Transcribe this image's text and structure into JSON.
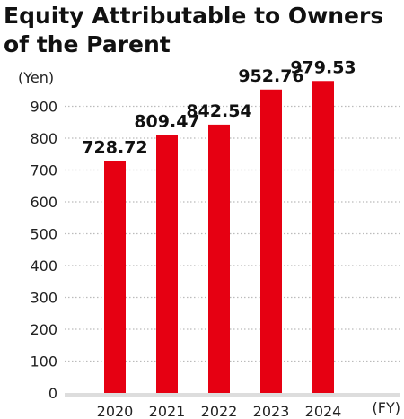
{
  "title": "Equity Attributable to Owners of the Parent",
  "chart_data": {
    "type": "bar",
    "title": "Equity Attributable to Owners of the Parent",
    "categories": [
      "2020",
      "2021",
      "2022",
      "2023",
      "2024"
    ],
    "values": [
      728.72,
      809.47,
      842.54,
      952.76,
      979.53
    ],
    "data_labels": [
      "728.72",
      "809.47",
      "842.54",
      "952.76",
      "979.53"
    ],
    "ylabel": "(Yen)",
    "xlabel": "(FY)",
    "ylim": [
      0,
      1000
    ],
    "yticks": [
      0,
      100,
      200,
      300,
      400,
      500,
      600,
      700,
      800,
      900
    ],
    "grid": true,
    "bar_color": "#e60012",
    "grid_color": "#bbbbbb",
    "baseline_color": "#dddddd"
  }
}
